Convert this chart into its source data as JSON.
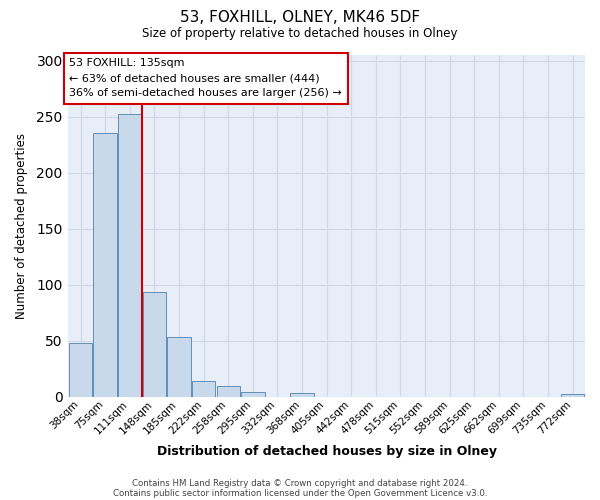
{
  "title": "53, FOXHILL, OLNEY, MK46 5DF",
  "subtitle": "Size of property relative to detached houses in Olney",
  "xlabel": "Distribution of detached houses by size in Olney",
  "ylabel": "Number of detached properties",
  "bar_labels": [
    "38sqm",
    "75sqm",
    "111sqm",
    "148sqm",
    "185sqm",
    "222sqm",
    "258sqm",
    "295sqm",
    "332sqm",
    "368sqm",
    "405sqm",
    "442sqm",
    "478sqm",
    "515sqm",
    "552sqm",
    "589sqm",
    "625sqm",
    "662sqm",
    "699sqm",
    "735sqm",
    "772sqm"
  ],
  "bar_values": [
    48,
    235,
    252,
    93,
    53,
    14,
    9,
    4,
    0,
    3,
    0,
    0,
    0,
    0,
    0,
    0,
    0,
    0,
    0,
    0,
    2
  ],
  "bar_color": "#c9d9ec",
  "bar_edge_color": "#6090b8",
  "marker_color": "#cc0000",
  "annotation_title": "53 FOXHILL: 135sqm",
  "annotation_line1": "← 63% of detached houses are smaller (444)",
  "annotation_line2": "36% of semi-detached houses are larger (256) →",
  "annotation_box_color": "#ffffff",
  "annotation_box_edge": "#cc0000",
  "ylim": [
    0,
    305
  ],
  "yticks": [
    0,
    50,
    100,
    150,
    200,
    250,
    300
  ],
  "footer_line1": "Contains HM Land Registry data © Crown copyright and database right 2024.",
  "footer_line2": "Contains public sector information licensed under the Open Government Licence v3.0.",
  "background_color": "#ffffff",
  "grid_color": "#d0d8e8",
  "plot_bg_color": "#e8eef8"
}
